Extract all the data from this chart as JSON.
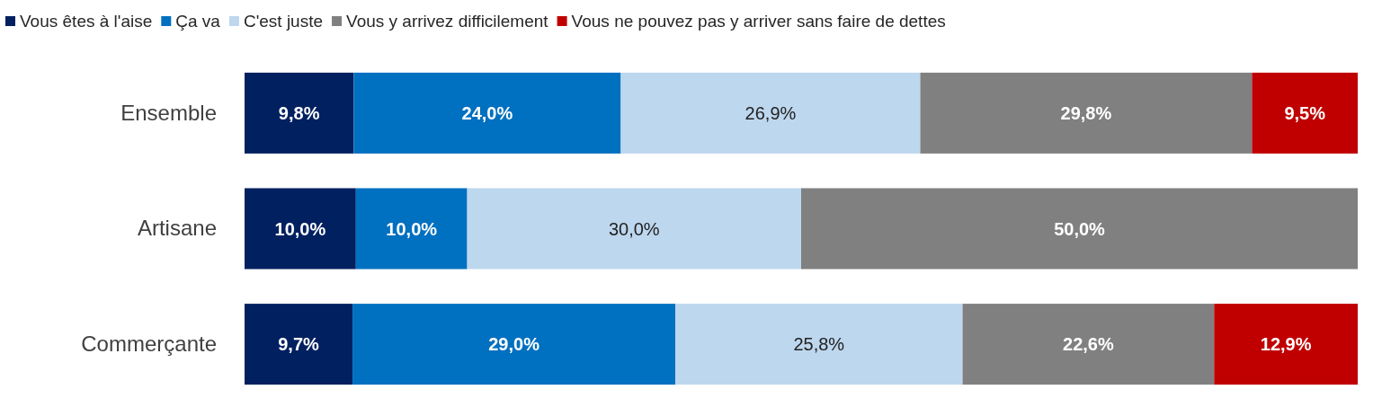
{
  "chart_data": {
    "type": "bar",
    "orientation": "horizontal",
    "stacked": true,
    "legend": "top",
    "tick_labels": "y",
    "xlim": [
      0,
      100
    ],
    "categories": [
      "Ensemble",
      "Artisane",
      "Commerçante"
    ],
    "series": [
      {
        "name": "Vous êtes à l'aise",
        "color": "#002060",
        "values": [
          9.8,
          10.0,
          9.7
        ],
        "value_labels": [
          "9,8%",
          "10,0%",
          "9,7%"
        ]
      },
      {
        "name": "Ça va",
        "color": "#0070c0",
        "values": [
          24.0,
          10.0,
          29.0
        ],
        "value_labels": [
          "24,0%",
          "10,0%",
          "29,0%"
        ]
      },
      {
        "name": "C'est juste",
        "color": "#bdd7ee",
        "values": [
          26.9,
          30.0,
          25.8
        ],
        "value_labels": [
          "26,9%",
          "30,0%",
          "25,8%"
        ]
      },
      {
        "name": "Vous y arrivez difficilement",
        "color": "#808080",
        "values": [
          29.8,
          50.0,
          22.6
        ],
        "value_labels": [
          "29,8%",
          "50,0%",
          "22,6%"
        ]
      },
      {
        "name": "Vous ne pouvez pas y arriver sans faire de dettes",
        "color": "#c00000",
        "values": [
          9.5,
          null,
          12.9
        ],
        "value_labels": [
          "9,5%",
          null,
          "12,9%"
        ]
      }
    ]
  }
}
